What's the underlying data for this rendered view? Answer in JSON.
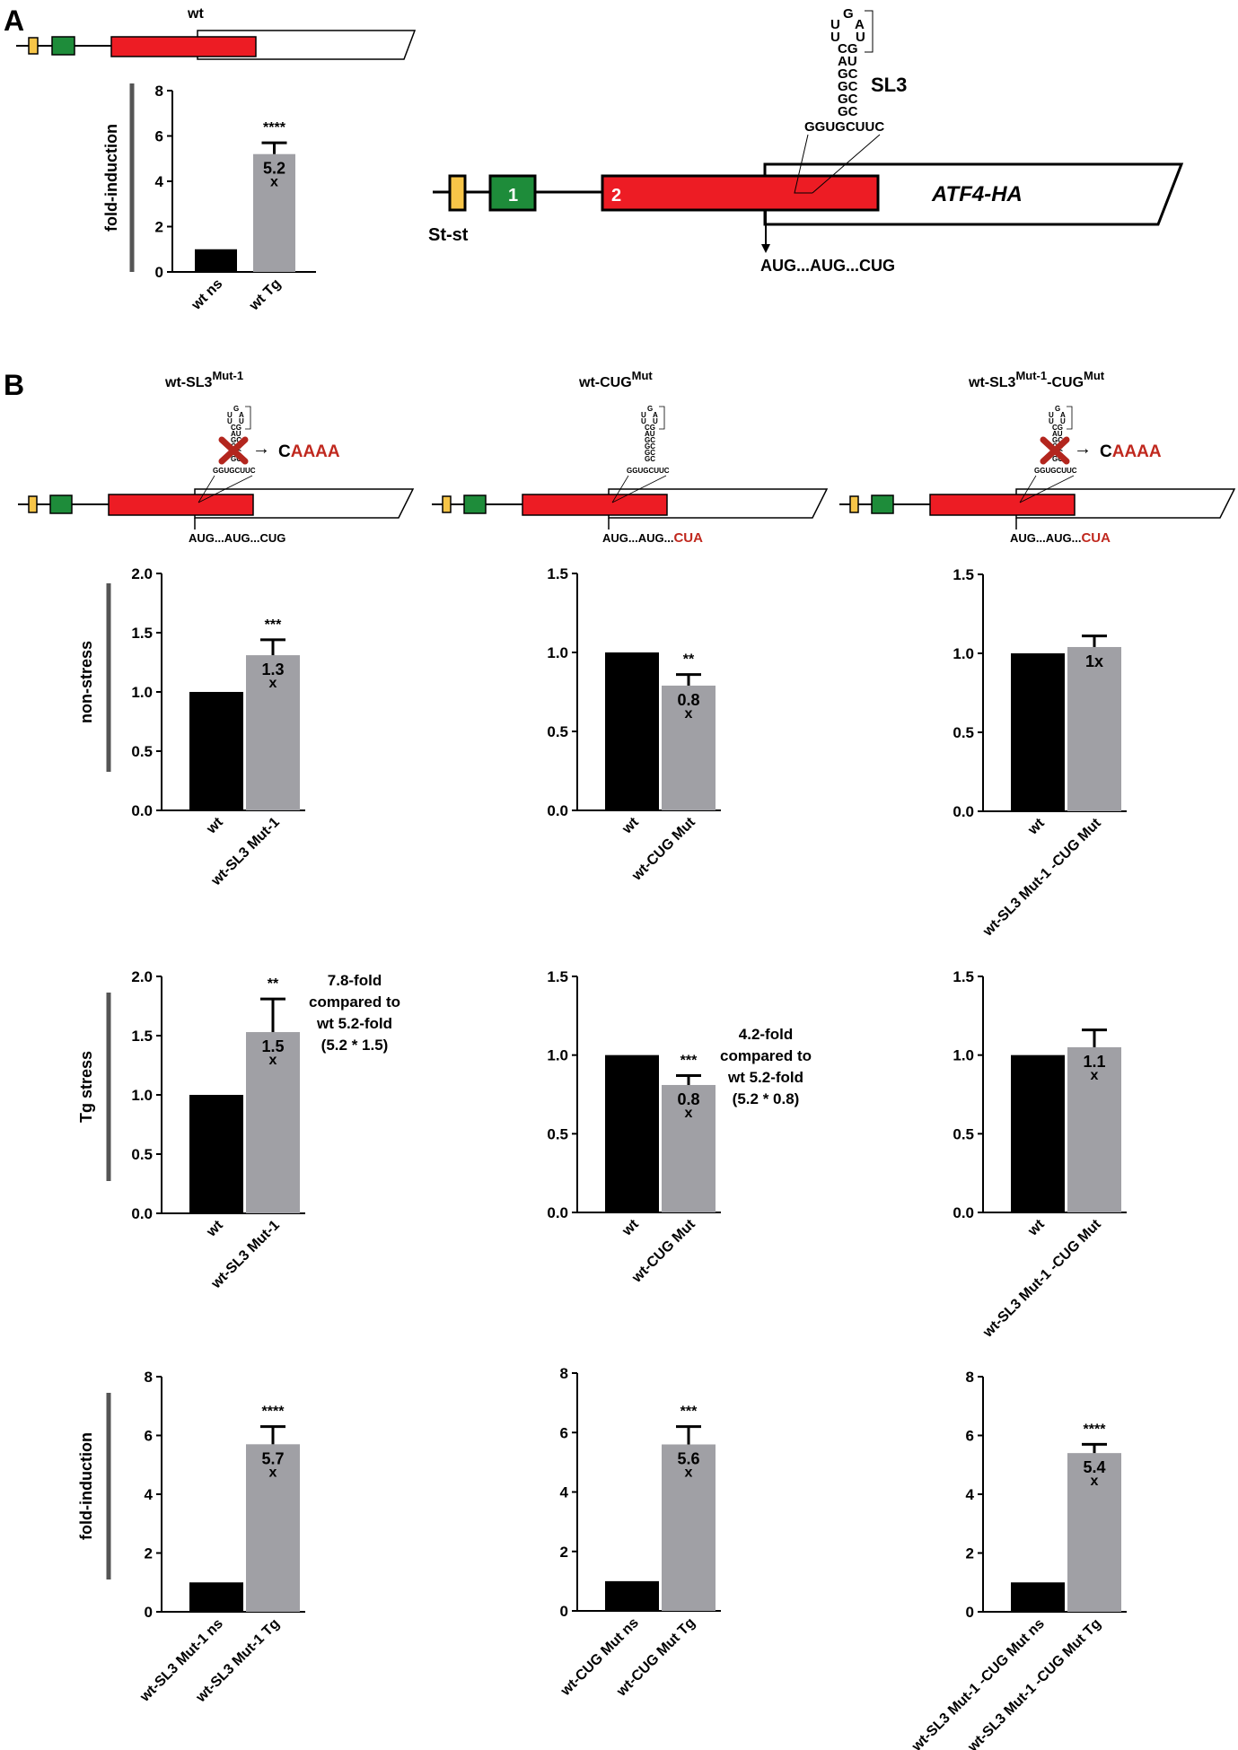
{
  "panel_a": {
    "label": "A",
    "wt_label": "wt",
    "st_st_label": "St-st",
    "exon1_label": "1",
    "exon2_label": "2",
    "atf4_label": "ATF4-HA",
    "sl3_label": "SL3",
    "aug_label": "AUG...AUG...CUG",
    "stemloop": {
      "loop_top": "G",
      "loop_left": "U",
      "loop_right": "A",
      "loop_left2": "U",
      "loop_right2": "U",
      "stem": [
        "CG",
        "AU",
        "GC",
        "GC",
        "GC",
        "GC"
      ],
      "base": "GGUGCUUC"
    }
  },
  "panel_b": {
    "label": "B",
    "columns": [
      {
        "title": "wt-SL3",
        "sup": "Mut-1",
        "title2": "",
        "sup2": "",
        "arrow": "→",
        "mut_c": "C",
        "mut_red": "AAAA",
        "has_x": true,
        "aug_black": "AUG...AUG...CUG",
        "aug_red": ""
      },
      {
        "title": "wt-CUG",
        "sup": "Mut",
        "title2": "",
        "sup2": "",
        "arrow": "",
        "mut_c": "",
        "mut_red": "",
        "has_x": false,
        "aug_black": "AUG...AUG...",
        "aug_red": "CUA"
      },
      {
        "title": "wt-SL3",
        "sup": "Mut-1",
        "title2": "-CUG",
        "sup2": "Mut",
        "arrow": "→",
        "mut_c": "C",
        "mut_red": "AAAA",
        "has_x": true,
        "aug_black": "AUG...AUG...",
        "aug_red": "CUA"
      }
    ],
    "row_labels": [
      "non-stress",
      "Tg stress",
      "fold-induction"
    ]
  },
  "colors": {
    "red": "#ED1C24",
    "green": "#1E8C3A",
    "yellow": "#F7C548",
    "bar_black": "#000000",
    "bar_gray": "#A0A0A5",
    "text_red": "#C0281E"
  },
  "chart_data": [
    {
      "id": "A",
      "type": "bar",
      "ylabel": "fold-induction",
      "ylim": [
        0,
        8
      ],
      "yticks": [
        "0",
        "2",
        "4",
        "6",
        "8"
      ],
      "categories": [
        "wt  ns",
        "wt Tg"
      ],
      "values": [
        1.0,
        5.2
      ],
      "errors": [
        0,
        0.5
      ],
      "significance": "****",
      "fold_label": "5.2",
      "fold_x": "x"
    },
    {
      "id": "B-ns-1",
      "type": "bar",
      "ylabel": "non-stress",
      "ylim": [
        0,
        2
      ],
      "yticks": [
        "0.0",
        "0.5",
        "1.0",
        "1.5",
        "2.0"
      ],
      "categories": [
        "wt",
        "wt-SL3 Mut-1"
      ],
      "values": [
        1.0,
        1.31
      ],
      "errors": [
        0,
        0.13
      ],
      "significance": "***",
      "fold_label": "1.3",
      "fold_x": "x"
    },
    {
      "id": "B-ns-2",
      "type": "bar",
      "ylabel": "",
      "ylim": [
        0,
        1.5
      ],
      "yticks": [
        "0.0",
        "0.5",
        "1.0",
        "1.5"
      ],
      "categories": [
        "wt",
        "wt-CUG Mut"
      ],
      "values": [
        1.0,
        0.79
      ],
      "errors": [
        0,
        0.07
      ],
      "significance": "**",
      "fold_label": "0.8",
      "fold_x": "x"
    },
    {
      "id": "B-ns-3",
      "type": "bar",
      "ylabel": "",
      "ylim": [
        0,
        1.5
      ],
      "yticks": [
        "0.0",
        "0.5",
        "1.0",
        "1.5"
      ],
      "categories": [
        "wt",
        "wt-SL3 Mut-1 -CUG Mut"
      ],
      "values": [
        1.0,
        1.04
      ],
      "errors": [
        0,
        0.07
      ],
      "significance": "",
      "fold_label": "1x",
      "fold_x": ""
    },
    {
      "id": "B-tg-1",
      "type": "bar",
      "ylabel": "Tg stress",
      "ylim": [
        0,
        2
      ],
      "yticks": [
        "0.0",
        "0.5",
        "1.0",
        "1.5",
        "2.0"
      ],
      "categories": [
        "wt",
        "wt-SL3 Mut-1"
      ],
      "values": [
        1.0,
        1.53
      ],
      "errors": [
        0,
        0.28
      ],
      "significance": "**",
      "fold_label": "1.5",
      "fold_x": "x",
      "annotation": [
        "7.8-fold",
        "compared to",
        "wt 5.2-fold",
        "(5.2 * 1.5)"
      ]
    },
    {
      "id": "B-tg-2",
      "type": "bar",
      "ylabel": "",
      "ylim": [
        0,
        1.5
      ],
      "yticks": [
        "0.0",
        "0.5",
        "1.0",
        "1.5"
      ],
      "categories": [
        "wt",
        "wt-CUG Mut"
      ],
      "values": [
        1.0,
        0.81
      ],
      "errors": [
        0,
        0.06
      ],
      "significance": "***",
      "fold_label": "0.8",
      "fold_x": "x",
      "annotation": [
        "4.2-fold",
        "compared to",
        "wt 5.2-fold",
        "(5.2 * 0.8)"
      ]
    },
    {
      "id": "B-tg-3",
      "type": "bar",
      "ylabel": "",
      "ylim": [
        0,
        1.5
      ],
      "yticks": [
        "0.0",
        "0.5",
        "1.0",
        "1.5"
      ],
      "categories": [
        "wt",
        "wt-SL3 Mut-1 -CUG Mut"
      ],
      "values": [
        1.0,
        1.05
      ],
      "errors": [
        0,
        0.11
      ],
      "significance": "",
      "fold_label": "1.1",
      "fold_x": "x"
    },
    {
      "id": "B-fi-1",
      "type": "bar",
      "ylabel": "fold-induction",
      "ylim": [
        0,
        8
      ],
      "yticks": [
        "0",
        "2",
        "4",
        "6",
        "8"
      ],
      "categories": [
        "wt-SL3 Mut-1 ns",
        "wt-SL3 Mut-1 Tg"
      ],
      "values": [
        1.0,
        5.7
      ],
      "errors": [
        0,
        0.6
      ],
      "significance": "****",
      "fold_label": "5.7",
      "fold_x": "x"
    },
    {
      "id": "B-fi-2",
      "type": "bar",
      "ylabel": "",
      "ylim": [
        0,
        8
      ],
      "yticks": [
        "0",
        "2",
        "4",
        "6",
        "8"
      ],
      "categories": [
        "wt-CUG Mut ns",
        "wt-CUG Mut Tg"
      ],
      "values": [
        1.0,
        5.6
      ],
      "errors": [
        0,
        0.6
      ],
      "significance": "***",
      "fold_label": "5.6",
      "fold_x": "x"
    },
    {
      "id": "B-fi-3",
      "type": "bar",
      "ylabel": "",
      "ylim": [
        0,
        8
      ],
      "yticks": [
        "0",
        "2",
        "4",
        "6",
        "8"
      ],
      "categories": [
        "wt-SL3 Mut-1 -CUG Mut ns",
        "wt-SL3 Mut-1 -CUG Mut Tg"
      ],
      "values": [
        1.0,
        5.4
      ],
      "errors": [
        0,
        0.3
      ],
      "significance": "****",
      "fold_label": "5.4",
      "fold_x": "x"
    }
  ]
}
